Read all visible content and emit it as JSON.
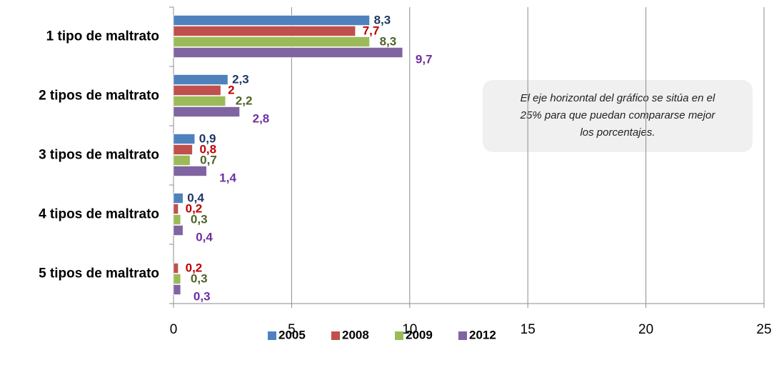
{
  "chart_data": {
    "type": "hbar",
    "categories": [
      "1 tipo de maltrato",
      "2 tipos de maltrato",
      "3 tipos de maltrato",
      "4 tipos de maltrato",
      "5 tipos de maltrato"
    ],
    "series": [
      {
        "name": "2005",
        "color": "#4f81bd",
        "label_color": "#1f3864",
        "values": [
          8.3,
          2.3,
          0.9,
          0.4,
          null
        ],
        "value_labels": [
          "8,3",
          "2,3",
          "0,9",
          "0,4",
          null
        ]
      },
      {
        "name": "2008",
        "color": "#c0504d",
        "label_color": "#c00000",
        "values": [
          7.7,
          2,
          0.8,
          0.2,
          0.2
        ],
        "value_labels": [
          "7,7",
          "2",
          "0,8",
          "0,2",
          "0,2"
        ]
      },
      {
        "name": "2009",
        "color": "#9bbb59",
        "label_color": "#4f6228",
        "values": [
          8.3,
          2.2,
          0.7,
          0.3,
          0.3
        ],
        "value_labels": [
          "8,3",
          "2,2",
          "0,7",
          "0,3",
          "0,3"
        ]
      },
      {
        "name": "2012",
        "color": "#8064a2",
        "label_color": "#7030a0",
        "values": [
          9.7,
          2.8,
          1.4,
          0.4,
          0.3
        ],
        "value_labels": [
          "9,7",
          "2,8",
          "1,4",
          "0,4",
          "0,3"
        ]
      }
    ],
    "xlim": [
      0,
      25
    ],
    "xticks": [
      0,
      5,
      10,
      15,
      20,
      25
    ],
    "grid": true,
    "legend": "bottom",
    "annotation": [
      "El eje horizontal del gráfico se sitúa en el",
      "25% para que puedan compararse mejor",
      "los porcentajes."
    ]
  }
}
